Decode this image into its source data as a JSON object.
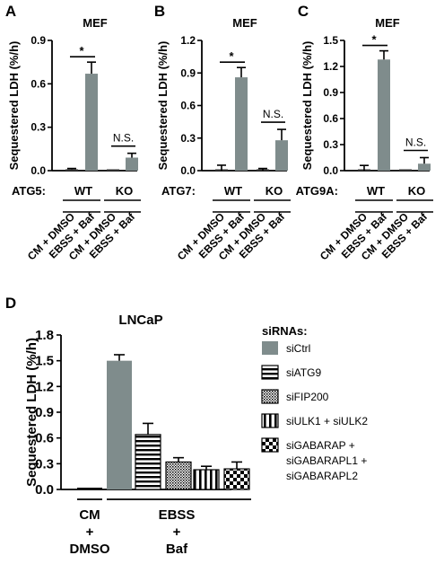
{
  "colors": {
    "bar_gray": "#7f8c8c",
    "error": "#000000",
    "axis": "#000000",
    "text": "#000000"
  },
  "panels": {
    "A": {
      "letter": "A",
      "title": "MEF",
      "ylabel": "Sequestered LDH (%/h)",
      "gene": "ATG5:",
      "groups": [
        "WT",
        "KO"
      ],
      "conditions": [
        "CM + DMSO",
        "EBSS + Baf",
        "CM + DMSO",
        "EBSS + Baf"
      ],
      "annotations": [
        "*",
        "N.S."
      ]
    },
    "B": {
      "letter": "B",
      "title": "MEF",
      "ylabel": "Sequestered LDH (%/h)",
      "gene": "ATG7:",
      "groups": [
        "WT",
        "KO"
      ],
      "conditions": [
        "CM + DMSO",
        "EBSS + Baf",
        "CM + DMSO",
        "EBSS + Baf"
      ],
      "annotations": [
        "*",
        "N.S."
      ]
    },
    "C": {
      "letter": "C",
      "title": "MEF",
      "ylabel": "Sequestered LDH (%/h)",
      "gene": "ATG9A:",
      "groups": [
        "WT",
        "KO"
      ],
      "conditions": [
        "CM + DMSO",
        "EBSS + Baf",
        "CM + DMSO",
        "EBSS + Baf"
      ],
      "annotations": [
        "*",
        "N.S."
      ]
    },
    "D": {
      "letter": "D",
      "title": "LNCaP",
      "ylabel": "Sequestered LDH (%/h)",
      "group_labels": [
        [
          "CM",
          "+",
          "DMSO"
        ],
        [
          "EBSS",
          "+",
          "Baf"
        ]
      ],
      "legend_title": "siRNAs:",
      "legend": [
        "siCtrl",
        "siATG9",
        "siFIP200",
        "siULK1 + siULK2",
        "siGABARAP +",
        "siGABARAPL1 +",
        "siGABARAPL2"
      ]
    }
  },
  "chart_data": [
    {
      "type": "bar",
      "panel": "A",
      "title": "MEF",
      "xlabel": "",
      "ylabel": "Sequestered LDH (%/h)",
      "ylim": [
        0,
        0.9
      ],
      "yticks": [
        0.0,
        0.3,
        0.6,
        0.9
      ],
      "categories": [
        "WT CM + DMSO",
        "WT EBSS + Baf",
        "KO CM + DMSO",
        "KO EBSS + Baf"
      ],
      "values": [
        0.01,
        0.67,
        0.0,
        0.09
      ],
      "errors": [
        0.005,
        0.08,
        0.0,
        0.03
      ]
    },
    {
      "type": "bar",
      "panel": "B",
      "title": "MEF",
      "xlabel": "",
      "ylabel": "Sequestered LDH (%/h)",
      "ylim": [
        0,
        1.2
      ],
      "yticks": [
        0.0,
        0.3,
        0.6,
        0.9,
        1.2
      ],
      "categories": [
        "WT CM + DMSO",
        "WT EBSS + Baf",
        "KO CM + DMSO",
        "KO EBSS + Baf"
      ],
      "values": [
        0.0,
        0.86,
        0.0,
        0.28
      ],
      "errors": [
        0.05,
        0.09,
        0.02,
        0.1
      ]
    },
    {
      "type": "bar",
      "panel": "C",
      "title": "MEF",
      "xlabel": "",
      "ylabel": "Sequestered LDH (%/h)",
      "ylim": [
        0,
        1.5
      ],
      "yticks": [
        0.0,
        0.3,
        0.6,
        0.9,
        1.2,
        1.5
      ],
      "categories": [
        "WT CM + DMSO",
        "WT EBSS + Baf",
        "KO CM + DMSO",
        "KO EBSS + Baf"
      ],
      "values": [
        0.0,
        1.28,
        0.0,
        0.08
      ],
      "errors": [
        0.06,
        0.1,
        0.0,
        0.07
      ]
    },
    {
      "type": "bar",
      "panel": "D",
      "title": "LNCaP",
      "xlabel": "",
      "ylabel": "Sequestered LDH (%/h)",
      "ylim": [
        0,
        1.8
      ],
      "yticks": [
        0.0,
        0.3,
        0.6,
        0.9,
        1.2,
        1.5,
        1.8
      ],
      "categories": [
        "CM + DMSO",
        "siCtrl",
        "siATG9",
        "siFIP200",
        "siULK1 + siULK2",
        "siGABARAP + siGABARAPL1 + siGABARAPL2"
      ],
      "values": [
        0.0,
        1.5,
        0.64,
        0.32,
        0.23,
        0.24
      ],
      "errors": [
        0.0,
        0.07,
        0.13,
        0.05,
        0.04,
        0.08
      ],
      "legend_position": "right"
    }
  ]
}
